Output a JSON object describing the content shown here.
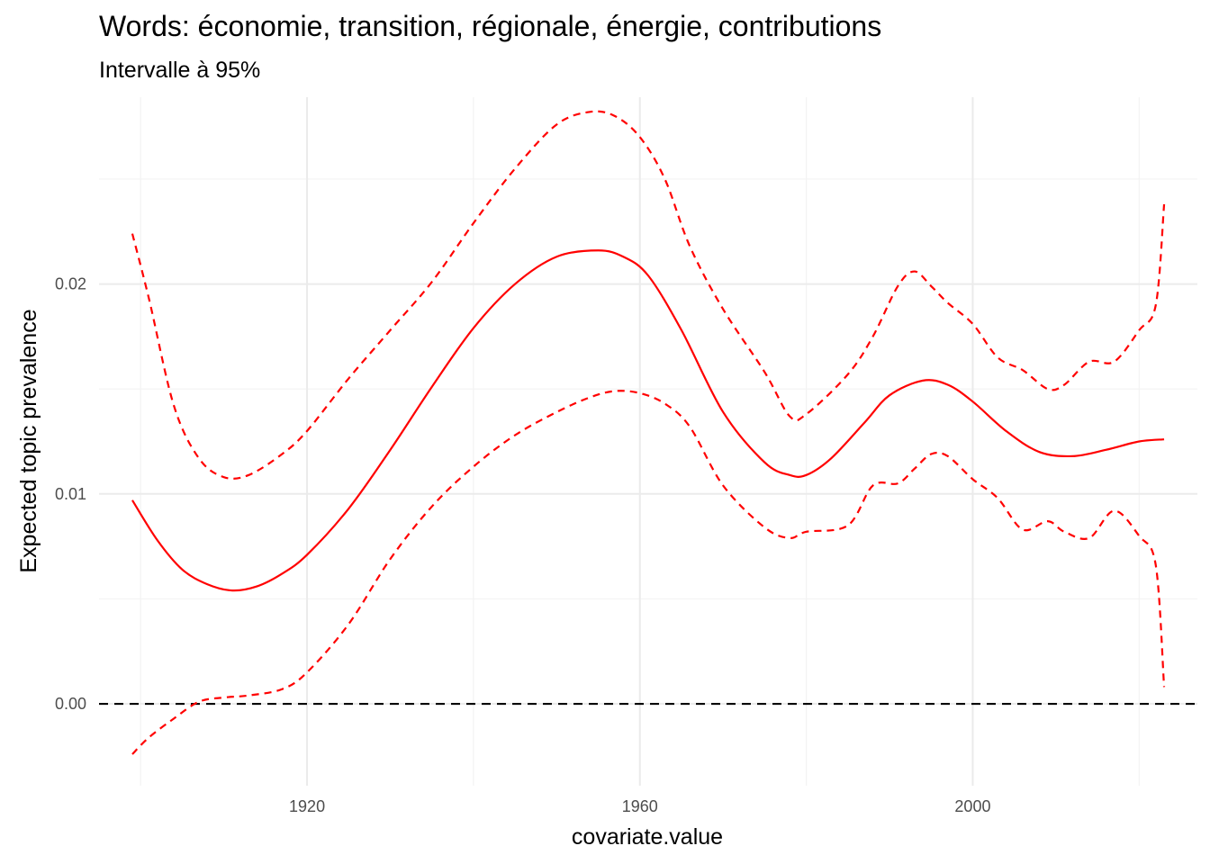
{
  "chart_data": {
    "type": "line",
    "title": "Words: économie, transition, régionale, énergie, contributions",
    "subtitle": "Intervalle à 95%",
    "xlabel": "covariate.value",
    "ylabel": "Expected topic prevalence",
    "xlim": [
      1895,
      2027
    ],
    "ylim": [
      -0.0039,
      0.0289
    ],
    "x_ticks": [
      1920,
      1960,
      2000
    ],
    "x_tick_labels": [
      "1920",
      "1960",
      "2000"
    ],
    "x_minor_ticks": [
      1900,
      1940,
      1980,
      2020
    ],
    "y_ticks": [
      0.0,
      0.01,
      0.02
    ],
    "y_tick_labels": [
      "0.00",
      "0.01",
      "0.02"
    ],
    "y_minor_ticks": [
      0.005,
      0.015,
      0.025
    ],
    "grid": true,
    "reference_line": {
      "y": 0,
      "style": "dashed",
      "color": "#000000"
    },
    "series": [
      {
        "role": "estimate",
        "style": "solid",
        "color": "#ff0000",
        "x": [
          1899,
          1902,
          1905,
          1908,
          1911,
          1914,
          1917,
          1920,
          1925,
          1930,
          1935,
          1940,
          1945,
          1950,
          1955,
          1958,
          1961,
          1965,
          1970,
          1975,
          1978,
          1980,
          1983,
          1987,
          1990,
          1994,
          1997,
          2000,
          2004,
          2008,
          2012,
          2016,
          2020,
          2023
        ],
        "y": [
          0.0097,
          0.0078,
          0.0064,
          0.0057,
          0.0054,
          0.0056,
          0.0062,
          0.0071,
          0.0093,
          0.0121,
          0.0151,
          0.0179,
          0.02,
          0.0213,
          0.0216,
          0.0213,
          0.0204,
          0.0178,
          0.0139,
          0.0115,
          0.0109,
          0.0109,
          0.0117,
          0.0134,
          0.0147,
          0.0154,
          0.0152,
          0.0144,
          0.013,
          0.012,
          0.0118,
          0.0121,
          0.0125,
          0.0126
        ]
      },
      {
        "role": "upper-95",
        "style": "dashed",
        "color": "#ff0000",
        "x": [
          1899,
          1901,
          1904,
          1907,
          1910,
          1913,
          1917,
          1920,
          1925,
          1930,
          1935,
          1940,
          1945,
          1950,
          1954,
          1957,
          1960,
          1963,
          1966,
          1970,
          1975,
          1978,
          1980,
          1985,
          1988,
          1991,
          1993,
          1995,
          1997,
          2000,
          2003,
          2006,
          2009,
          2011,
          2014,
          2017,
          2020,
          2022,
          2023
        ],
        "y": [
          0.0224,
          0.0193,
          0.0142,
          0.0117,
          0.0108,
          0.0109,
          0.0119,
          0.013,
          0.0155,
          0.0178,
          0.0201,
          0.0229,
          0.0255,
          0.0276,
          0.0282,
          0.028,
          0.027,
          0.025,
          0.0218,
          0.0188,
          0.0158,
          0.0137,
          0.0138,
          0.0157,
          0.0175,
          0.0199,
          0.0206,
          0.0199,
          0.0191,
          0.0181,
          0.0165,
          0.0159,
          0.015,
          0.0152,
          0.0163,
          0.0163,
          0.0178,
          0.019,
          0.0238
        ]
      },
      {
        "role": "lower-95",
        "style": "dashed",
        "color": "#ff0000",
        "x": [
          1899,
          1901,
          1904,
          1907,
          1910,
          1913,
          1917,
          1920,
          1925,
          1930,
          1935,
          1940,
          1945,
          1950,
          1954,
          1957,
          1960,
          1963,
          1966,
          1970,
          1975,
          1978,
          1980,
          1985,
          1988,
          1991,
          1993,
          1995,
          1997,
          2000,
          2003,
          2006,
          2009,
          2011,
          2014,
          2017,
          2020,
          2022,
          2023
        ],
        "y": [
          -0.0024,
          -0.0016,
          -0.0007,
          0.0001,
          0.0003,
          0.0004,
          0.0007,
          0.0015,
          0.0038,
          0.0069,
          0.0094,
          0.0113,
          0.0128,
          0.0139,
          0.0146,
          0.0149,
          0.0148,
          0.0143,
          0.0132,
          0.0104,
          0.0084,
          0.0079,
          0.0082,
          0.0085,
          0.0104,
          0.0105,
          0.0112,
          0.0119,
          0.0118,
          0.0107,
          0.0098,
          0.0083,
          0.0087,
          0.0082,
          0.0079,
          0.0092,
          0.008,
          0.0066,
          0.0008
        ]
      }
    ]
  }
}
